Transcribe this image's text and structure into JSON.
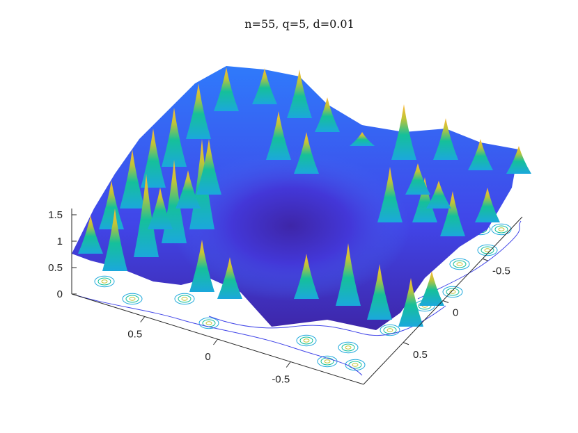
{
  "chart_data": {
    "type": "surface",
    "title": "n=55, q=5, d=0.01",
    "xlabel": "",
    "ylabel": "",
    "zlabel": "",
    "x_ticks": [
      "-0.5",
      "0",
      "0.5"
    ],
    "y_ticks": [
      "-0.5",
      "0",
      "0.5"
    ],
    "z_ticks": [
      "0",
      "0.5",
      "1",
      "1.5"
    ],
    "xlim": [
      -1,
      1
    ],
    "ylim": [
      -1,
      1
    ],
    "zlim": [
      0,
      1.8
    ],
    "colormap": [
      "#3e26a8",
      "#4145e8",
      "#2f7afb",
      "#1ba8dc",
      "#15c09a",
      "#5cc863",
      "#c3c436",
      "#fcb93a",
      "#f9fb0e"
    ],
    "contour_projection": true,
    "grid": false,
    "legend": "none"
  }
}
